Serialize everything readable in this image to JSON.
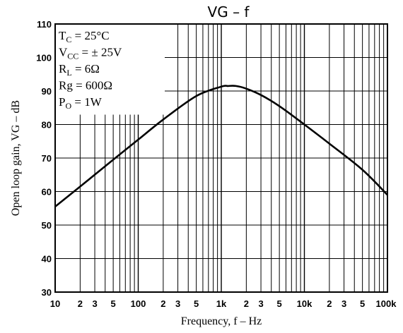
{
  "chart_data": {
    "type": "line",
    "title": "VG  –  f",
    "xlabel": "Frequency, f – Hz",
    "ylabel": "Open loop gain, VG – dB",
    "x_scale": "log",
    "xlim": [
      10,
      100000
    ],
    "ylim": [
      30,
      110
    ],
    "y_ticks": [
      "30",
      "40",
      "50",
      "60",
      "70",
      "80",
      "90",
      "100",
      "110"
    ],
    "x_tick_labels": [
      {
        "value": 10,
        "label": "10"
      },
      {
        "value": 20,
        "label": "2"
      },
      {
        "value": 30,
        "label": "3"
      },
      {
        "value": 50,
        "label": "5"
      },
      {
        "value": 100,
        "label": "100"
      },
      {
        "value": 200,
        "label": "2"
      },
      {
        "value": 300,
        "label": "3"
      },
      {
        "value": 500,
        "label": "5"
      },
      {
        "value": 1000,
        "label": "1k"
      },
      {
        "value": 2000,
        "label": "2"
      },
      {
        "value": 3000,
        "label": "3"
      },
      {
        "value": 5000,
        "label": "5"
      },
      {
        "value": 10000,
        "label": "10k"
      },
      {
        "value": 20000,
        "label": "2"
      },
      {
        "value": 30000,
        "label": "3"
      },
      {
        "value": 50000,
        "label": "5"
      },
      {
        "value": 100000,
        "label": "100k"
      }
    ],
    "grid": true,
    "conditions": [
      {
        "main": "T",
        "sub": "C",
        "rest": " = 25°C"
      },
      {
        "main": "V",
        "sub": "CC",
        "rest": " = ± 25V"
      },
      {
        "main": "R",
        "sub": "L",
        "rest": " = 6Ω"
      },
      {
        "main": "Rg",
        "sub": "",
        "rest": " = 600Ω"
      },
      {
        "main": "P",
        "sub": "O",
        "rest": " = 1W"
      }
    ],
    "series": [
      {
        "x": [
          10,
          20,
          50,
          100,
          200,
          500,
          1000,
          1200,
          1500,
          2000,
          3000,
          5000,
          10000,
          20000,
          50000,
          100000
        ],
        "y": [
          55.5,
          61.5,
          69.5,
          75.5,
          81.5,
          88.5,
          91.3,
          91.5,
          91.5,
          90.7,
          88.8,
          85.5,
          80.0,
          74.3,
          66.5,
          59.0
        ]
      }
    ]
  }
}
